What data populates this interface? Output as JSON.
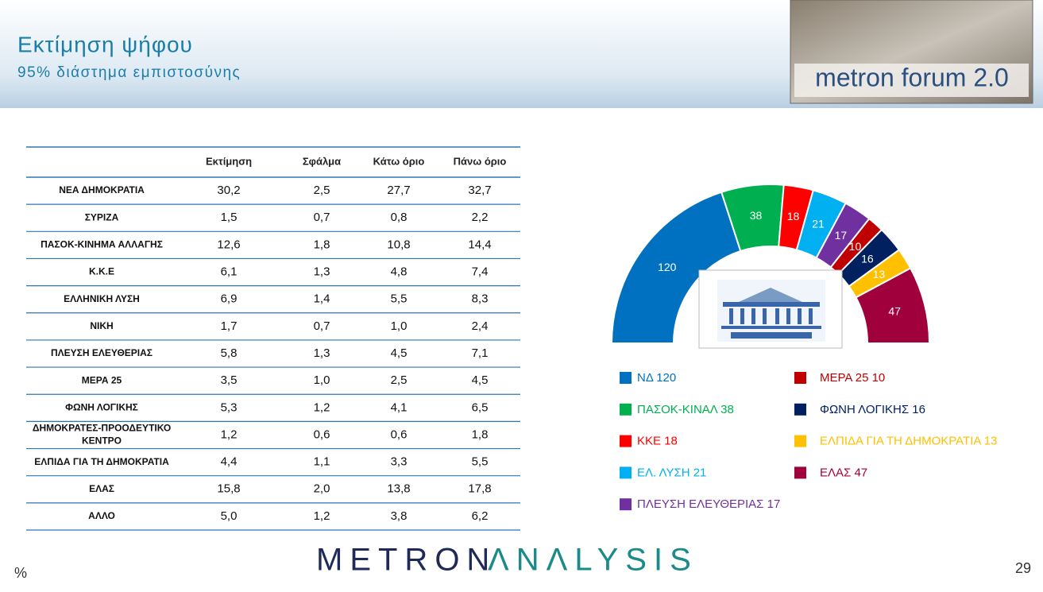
{
  "header": {
    "title": "Εκτίμηση ψήφου",
    "subtitle": "95% διάστημα εμπιστοσύνης",
    "logo": "metron forum 2.0"
  },
  "table": {
    "columns": [
      "Εκτίμηση",
      "Σφάλμα",
      "Κάτω όριο",
      "Πάνω όριο"
    ],
    "rows": [
      [
        "ΝΕΑ  ΔΗΜΟΚΡΑΤΙΑ",
        "30,2",
        "2,5",
        "27,7",
        "32,7"
      ],
      [
        "ΣΥΡΙΖΑ",
        "1,5",
        "0,7",
        "0,8",
        "2,2"
      ],
      [
        "ΠΑΣΟΚ-ΚΙΝΗΜΑ  ΑΛΛΑΓΗΣ",
        "12,6",
        "1,8",
        "10,8",
        "14,4"
      ],
      [
        "Κ.Κ.Ε",
        "6,1",
        "1,3",
        "4,8",
        "7,4"
      ],
      [
        "ΕΛΛΗΝΙΚΗ  ΛΥΣΗ",
        "6,9",
        "1,4",
        "5,5",
        "8,3"
      ],
      [
        "ΝΙΚΗ",
        "1,7",
        "0,7",
        "1,0",
        "2,4"
      ],
      [
        "ΠΛΕΥΣΗ ΕΛΕΥΘΕΡΙΑΣ",
        "5,8",
        "1,3",
        "4,5",
        "7,1"
      ],
      [
        "ΜΕΡΑ 25",
        "3,5",
        "1,0",
        "2,5",
        "4,5"
      ],
      [
        "ΦΩΝΗ ΛΟΓΙΚΗΣ",
        "5,3",
        "1,2",
        "4,1",
        "6,5"
      ],
      [
        "ΔΗΜΟΚΡΑΤΕΣ-ΠΡΟΟΔΕΥΤΙΚΟ ΚΕΝΤΡΟ",
        "1,2",
        "0,6",
        "0,6",
        "1,8"
      ],
      [
        "ΕΛΠΙΔΑ ΓΙΑ ΤΗ ΔΗΜΟΚΡΑΤΙΑ",
        "4,4",
        "1,1",
        "3,3",
        "5,5"
      ],
      [
        "ΕΛΑΣ",
        "15,8",
        "2,0",
        "13,8",
        "17,8"
      ],
      [
        "ΑΛΛΟ",
        "5,0",
        "1,2",
        "3,8",
        "6,2"
      ]
    ]
  },
  "chart_data": {
    "type": "semi-donut",
    "categories": [
      "ΝΔ 120",
      "ΠΑΣΟΚ-ΚΙΝΑΛ  38",
      "ΚΚΕ 18",
      "ΕΛ. ΛΥΣΗ 21",
      "ΠΛΕΥΣΗ ΕΛΕΥΘΕΡΙΑΣ 17",
      "ΜΕΡΑ 25 10",
      "ΦΩΝΗ ΛΟΓΙΚΗΣ  16",
      "ΕΛΠΙΔΑ ΓΙΑ ΤΗ ΔΗΜΟΚΡΑΤΙΑ 13",
      "ΕΛΑΣ 47"
    ],
    "values": [
      120,
      38,
      18,
      21,
      17,
      10,
      16,
      13,
      47
    ],
    "colors": [
      "#0070c0",
      "#00b050",
      "#ff0000",
      "#00b0f0",
      "#7030a0",
      "#c00000",
      "#002060",
      "#ffc000",
      "#a0003c"
    ]
  },
  "footer": {
    "brand_left": "METRON",
    "brand_right": "ΛNΛLYSIS",
    "corner": "%",
    "page": "29"
  }
}
